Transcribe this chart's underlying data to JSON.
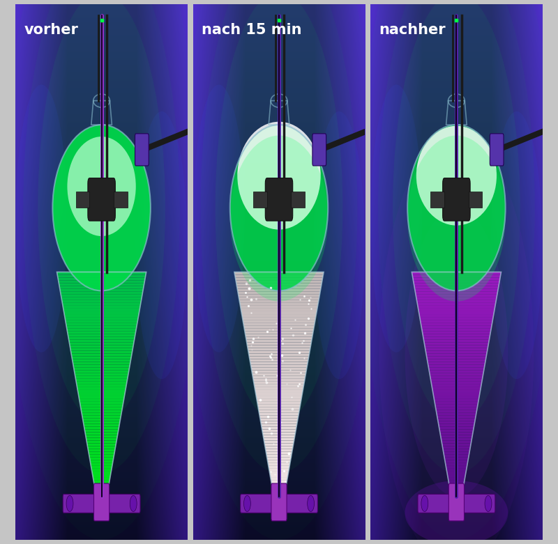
{
  "panels": [
    {
      "label": "vorher"
    },
    {
      "label": "nach 15 min"
    },
    {
      "label": "nachher"
    }
  ],
  "outer_bg": "#c5c5c5",
  "label_color": "white",
  "label_fontsize": 15,
  "label_fontweight": "bold",
  "figure_width": 8.0,
  "figure_height": 7.81
}
